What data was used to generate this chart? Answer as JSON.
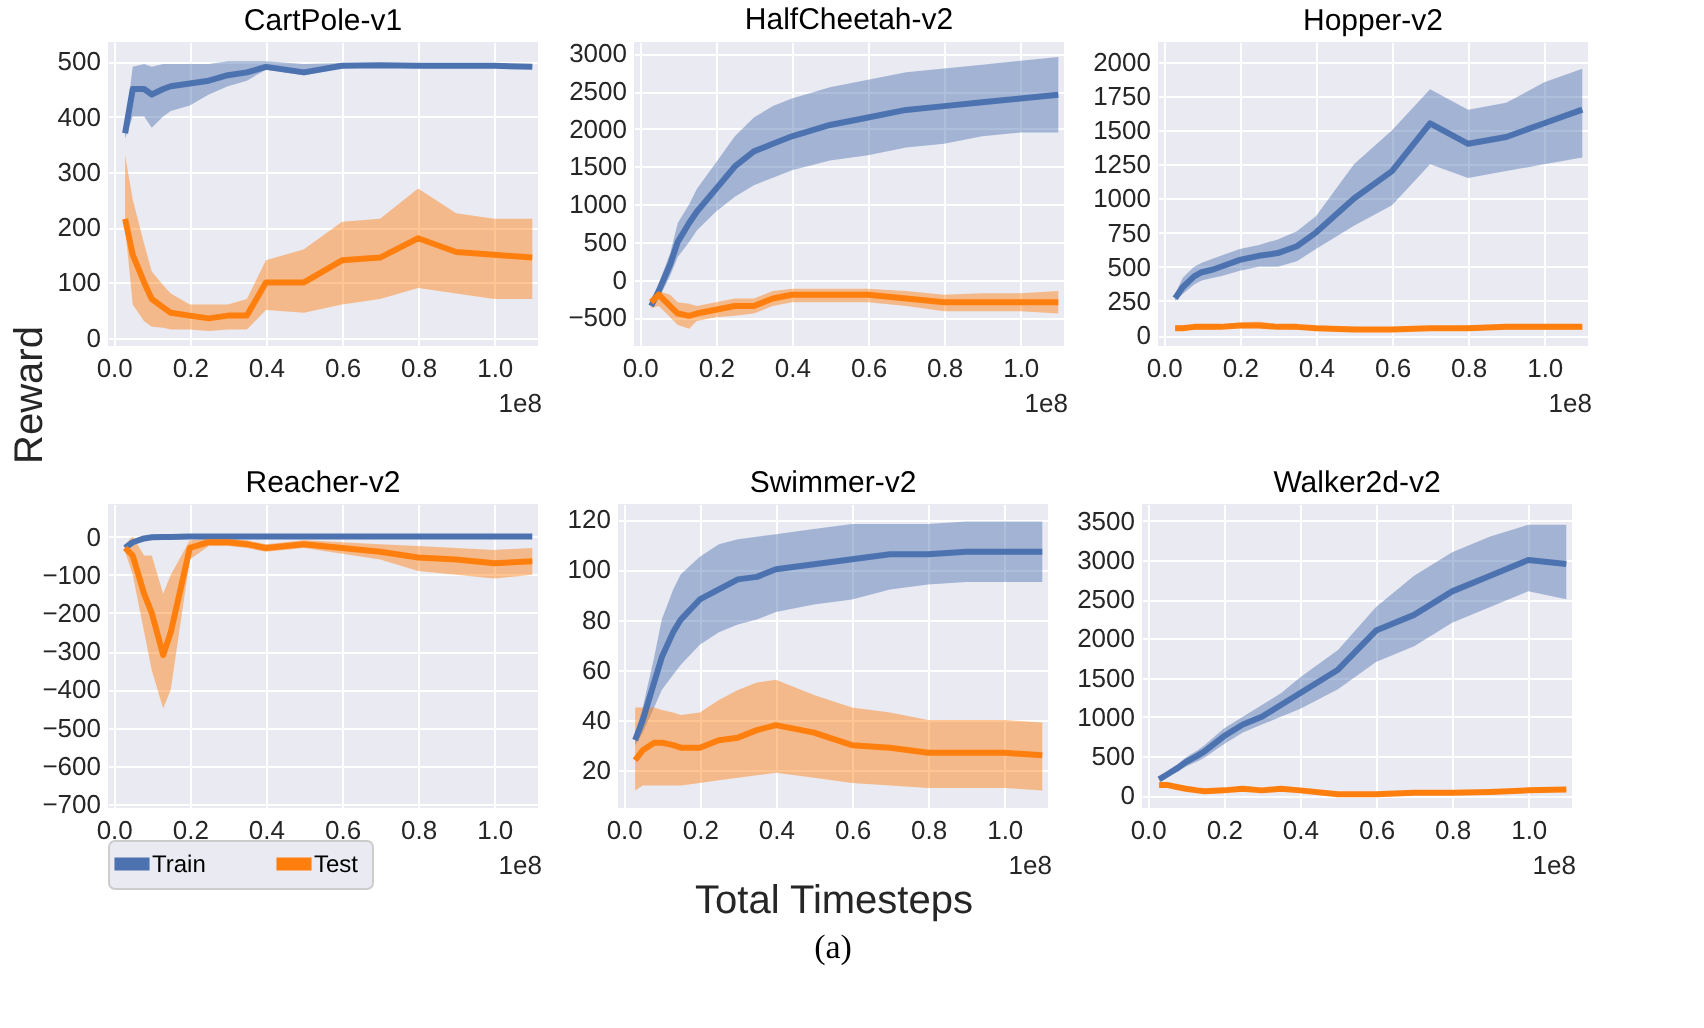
{
  "chart_data": [
    {
      "type": "line",
      "title": "CartPole-v1",
      "ylabel": "Reward",
      "annotations": [
        "1e8"
      ],
      "grid": true,
      "x": [
        0.03,
        0.05,
        0.08,
        0.1,
        0.13,
        0.15,
        0.2,
        0.25,
        0.3,
        0.35,
        0.4,
        0.5,
        0.6,
        0.7,
        0.8,
        0.9,
        1.0,
        1.1
      ],
      "xlim": [
        -0.015,
        1.115
      ],
      "xticks": [
        {
          "value": 0,
          "label": "0.0"
        },
        {
          "value": 0.2,
          "label": "0.2"
        },
        {
          "value": 0.4,
          "label": "0.4"
        },
        {
          "value": 0.6,
          "label": "0.6"
        },
        {
          "value": 0.8,
          "label": "0.8"
        },
        {
          "value": 1,
          "label": "1.0"
        }
      ],
      "ylim": [
        -15,
        535
      ],
      "yticks": [
        0,
        100,
        200,
        300,
        400,
        500
      ],
      "series": [
        {
          "color": "#4c72b0",
          "values": [
            370,
            450,
            450,
            440,
            450,
            455,
            460,
            465,
            475,
            480,
            490,
            480,
            492,
            493,
            492,
            492,
            492,
            490
          ],
          "lower": [
            360,
            400,
            400,
            380,
            400,
            410,
            420,
            440,
            455,
            465,
            485,
            475,
            488,
            490,
            488,
            488,
            488,
            487
          ],
          "upper": [
            380,
            490,
            495,
            490,
            495,
            495,
            495,
            495,
            500,
            500,
            500,
            495,
            497,
            497,
            497,
            496,
            496,
            495
          ]
        },
        {
          "color": "#ff7f0e",
          "values": [
            215,
            150,
            100,
            70,
            55,
            45,
            40,
            35,
            40,
            40,
            100,
            100,
            140,
            145,
            180,
            155,
            150,
            145
          ],
          "lower": [
            200,
            60,
            30,
            20,
            18,
            15,
            15,
            12,
            15,
            15,
            50,
            45,
            60,
            70,
            90,
            80,
            70,
            70
          ],
          "upper": [
            330,
            250,
            170,
            120,
            95,
            80,
            60,
            60,
            60,
            70,
            140,
            160,
            210,
            215,
            270,
            225,
            215,
            215
          ]
        }
      ]
    },
    {
      "type": "line",
      "title": "HalfCheetah-v2",
      "annotations": [
        "1e8"
      ],
      "grid": true,
      "x": [
        0.03,
        0.05,
        0.08,
        0.1,
        0.13,
        0.15,
        0.2,
        0.25,
        0.3,
        0.35,
        0.4,
        0.5,
        0.6,
        0.7,
        0.8,
        0.9,
        1.0,
        1.1
      ],
      "xlim": [
        -0.015,
        1.115
      ],
      "xticks": [
        {
          "value": 0,
          "label": "0.0"
        },
        {
          "value": 0.2,
          "label": "0.2"
        },
        {
          "value": 0.4,
          "label": "0.4"
        },
        {
          "value": 0.6,
          "label": "0.6"
        },
        {
          "value": 0.8,
          "label": "0.8"
        },
        {
          "value": 1,
          "label": "1.0"
        }
      ],
      "ylim": [
        -880,
        3150
      ],
      "yticks": [
        -500,
        0,
        500,
        1000,
        1500,
        2000,
        2500,
        3000
      ],
      "series": [
        {
          "color": "#4c72b0",
          "values": [
            -350,
            -150,
            200,
            500,
            750,
            900,
            1200,
            1500,
            1700,
            1800,
            1900,
            2050,
            2150,
            2250,
            2300,
            2350,
            2400,
            2450
          ],
          "lower": [
            -350,
            -250,
            50,
            300,
            500,
            650,
            900,
            1100,
            1250,
            1350,
            1450,
            1580,
            1650,
            1750,
            1800,
            1900,
            1950,
            1950
          ],
          "upper": [
            -350,
            -50,
            350,
            750,
            1000,
            1200,
            1550,
            1900,
            2150,
            2300,
            2400,
            2550,
            2650,
            2750,
            2800,
            2850,
            2900,
            2950
          ]
        },
        {
          "color": "#ff7f0e",
          "values": [
            -300,
            -200,
            -350,
            -450,
            -480,
            -450,
            -400,
            -350,
            -350,
            -250,
            -200,
            -200,
            -200,
            -250,
            -300,
            -300,
            -300,
            -300
          ],
          "lower": [
            -380,
            -350,
            -500,
            -600,
            -650,
            -550,
            -500,
            -480,
            -450,
            -350,
            -300,
            -300,
            -300,
            -350,
            -420,
            -420,
            -420,
            -450
          ],
          "upper": [
            -250,
            -150,
            -200,
            -300,
            -320,
            -350,
            -300,
            -250,
            -250,
            -150,
            -120,
            -120,
            -120,
            -150,
            -200,
            -180,
            -180,
            -150
          ]
        }
      ]
    },
    {
      "type": "line",
      "title": "Hopper-v2",
      "annotations": [
        "1e8"
      ],
      "grid": true,
      "x": [
        0.03,
        0.05,
        0.08,
        0.1,
        0.13,
        0.15,
        0.2,
        0.25,
        0.3,
        0.35,
        0.4,
        0.5,
        0.6,
        0.7,
        0.8,
        0.9,
        1.0,
        1.1
      ],
      "xlim": [
        -0.015,
        1.115
      ],
      "xticks": [
        {
          "value": 0,
          "label": "0.0"
        },
        {
          "value": 0.2,
          "label": "0.2"
        },
        {
          "value": 0.4,
          "label": "0.4"
        },
        {
          "value": 0.6,
          "label": "0.6"
        },
        {
          "value": 0.8,
          "label": "0.8"
        },
        {
          "value": 1,
          "label": "1.0"
        }
      ],
      "ylim": [
        -80,
        2145
      ],
      "yticks": [
        0,
        250,
        500,
        750,
        1000,
        1250,
        1500,
        1750,
        2000
      ],
      "series": [
        {
          "color": "#4c72b0",
          "values": [
            270,
            350,
            430,
            460,
            480,
            500,
            550,
            580,
            600,
            650,
            750,
            1000,
            1200,
            1550,
            1400,
            1450,
            1550,
            1650
          ],
          "lower": [
            250,
            300,
            370,
            400,
            420,
            430,
            470,
            500,
            500,
            540,
            630,
            800,
            950,
            1250,
            1150,
            1200,
            1250,
            1300
          ],
          "upper": [
            300,
            420,
            500,
            530,
            560,
            580,
            630,
            660,
            700,
            760,
            870,
            1250,
            1500,
            1800,
            1650,
            1700,
            1850,
            1950
          ]
        },
        {
          "color": "#ff7f0e",
          "values": [
            50,
            50,
            60,
            60,
            60,
            60,
            70,
            70,
            60,
            60,
            50,
            40,
            40,
            50,
            50,
            60,
            60,
            60
          ],
          "lower": [
            40,
            40,
            40,
            40,
            40,
            50,
            50,
            50,
            50,
            40,
            40,
            30,
            30,
            40,
            40,
            40,
            40,
            40
          ],
          "upper": [
            70,
            70,
            70,
            70,
            80,
            80,
            90,
            100,
            80,
            70,
            70,
            60,
            50,
            60,
            70,
            70,
            70,
            70
          ]
        }
      ]
    },
    {
      "type": "line",
      "title": "Reacher-v2",
      "annotations": [
        "1e8"
      ],
      "grid": true,
      "legend": "bottom left",
      "x": [
        0.03,
        0.05,
        0.08,
        0.1,
        0.13,
        0.15,
        0.2,
        0.25,
        0.3,
        0.35,
        0.4,
        0.5,
        0.6,
        0.7,
        0.8,
        0.9,
        1.0,
        1.1
      ],
      "xlim": [
        -0.015,
        1.115
      ],
      "xticks": [
        {
          "value": 0,
          "label": "0.0"
        },
        {
          "value": 0.2,
          "label": "0.2"
        },
        {
          "value": 0.4,
          "label": "0.4"
        },
        {
          "value": 0.6,
          "label": "0.6"
        },
        {
          "value": 0.8,
          "label": "0.8"
        },
        {
          "value": 1,
          "label": "1.0"
        }
      ],
      "ylim": [
        -710,
        85
      ],
      "yticks": [
        -700,
        -600,
        -500,
        -400,
        -300,
        -200,
        -100,
        0
      ],
      "series": [
        {
          "name": "Train",
          "color": "#4c72b0",
          "values": [
            -30,
            -15,
            -5,
            -2,
            -1,
            -1,
            0,
            0,
            0,
            0,
            0,
            0,
            0,
            0,
            0,
            0,
            0,
            0
          ],
          "lower": [
            -35,
            -20,
            -8,
            -5,
            -4,
            -4,
            -3,
            -3,
            -3,
            -3,
            -3,
            -3,
            -3,
            -3,
            -3,
            -3,
            -3,
            -3
          ],
          "upper": [
            -25,
            -10,
            -2,
            0,
            0,
            0,
            0,
            0,
            0,
            0,
            0,
            0,
            0,
            0,
            0,
            0,
            0,
            0
          ]
        },
        {
          "name": "Test",
          "color": "#ff7f0e",
          "values": [
            -30,
            -50,
            -150,
            -200,
            -310,
            -250,
            -30,
            -15,
            -15,
            -20,
            -30,
            -20,
            -30,
            -40,
            -55,
            -60,
            -70,
            -65
          ],
          "lower": [
            -40,
            -100,
            -250,
            -350,
            -450,
            -400,
            -60,
            -25,
            -25,
            -30,
            -40,
            -30,
            -45,
            -60,
            -90,
            -100,
            -110,
            -100
          ],
          "upper": [
            -20,
            0,
            -50,
            -50,
            -150,
            -100,
            -10,
            -5,
            -5,
            -10,
            -20,
            -10,
            -15,
            -20,
            -25,
            -30,
            -35,
            -30
          ]
        }
      ]
    },
    {
      "type": "line",
      "title": "Swimmer-v2",
      "xlabel": "Total Timesteps",
      "annotations": [
        "1e8",
        "(a)"
      ],
      "grid": true,
      "x": [
        0.03,
        0.05,
        0.08,
        0.1,
        0.13,
        0.15,
        0.2,
        0.25,
        0.3,
        0.35,
        0.4,
        0.5,
        0.6,
        0.7,
        0.8,
        0.9,
        1.0,
        1.1
      ],
      "xlim": [
        -0.015,
        1.115
      ],
      "xticks": [
        {
          "value": 0,
          "label": "0.0"
        },
        {
          "value": 0.2,
          "label": "0.2"
        },
        {
          "value": 0.4,
          "label": "0.4"
        },
        {
          "value": 0.6,
          "label": "0.6"
        },
        {
          "value": 0.8,
          "label": "0.8"
        },
        {
          "value": 1,
          "label": "1.0"
        }
      ],
      "ylim": [
        5,
        126
      ],
      "yticks": [
        20,
        40,
        60,
        80,
        100,
        120
      ],
      "series": [
        {
          "color": "#4c72b0",
          "values": [
            32,
            40,
            55,
            65,
            75,
            80,
            88,
            92,
            96,
            97,
            100,
            102,
            104,
            106,
            106,
            107,
            107,
            107
          ],
          "lower": [
            30,
            35,
            45,
            52,
            58,
            62,
            70,
            75,
            78,
            80,
            83,
            86,
            88,
            92,
            94,
            95,
            95,
            95
          ],
          "upper": [
            35,
            45,
            65,
            80,
            92,
            98,
            105,
            110,
            112,
            113,
            114,
            116,
            118,
            118,
            118,
            119,
            119,
            119
          ]
        },
        {
          "color": "#ff7f0e",
          "values": [
            24,
            28,
            31,
            31,
            30,
            29,
            29,
            32,
            33,
            36,
            38,
            35,
            30,
            29,
            27,
            27,
            27,
            26
          ],
          "lower": [
            12,
            14,
            14,
            14,
            14,
            14,
            15,
            16,
            17,
            18,
            19,
            17,
            15,
            14,
            13,
            13,
            13,
            12
          ],
          "upper": [
            45,
            45,
            45,
            44,
            43,
            42,
            43,
            48,
            52,
            55,
            56,
            50,
            45,
            43,
            40,
            40,
            40,
            39
          ]
        }
      ]
    },
    {
      "type": "line",
      "title": "Walker2d-v2",
      "annotations": [
        "1e8"
      ],
      "grid": true,
      "x": [
        0.03,
        0.05,
        0.08,
        0.1,
        0.13,
        0.15,
        0.2,
        0.25,
        0.3,
        0.35,
        0.4,
        0.5,
        0.6,
        0.7,
        0.8,
        0.9,
        1.0,
        1.1
      ],
      "xlim": [
        -0.015,
        1.115
      ],
      "xticks": [
        {
          "value": 0,
          "label": "0.0"
        },
        {
          "value": 0.2,
          "label": "0.2"
        },
        {
          "value": 0.4,
          "label": "0.4"
        },
        {
          "value": 0.6,
          "label": "0.6"
        },
        {
          "value": 0.8,
          "label": "0.8"
        },
        {
          "value": 1,
          "label": "1.0"
        }
      ],
      "ylim": [
        -165,
        3715
      ],
      "yticks": [
        0,
        500,
        1000,
        1500,
        2000,
        2500,
        3000,
        3500
      ],
      "series": [
        {
          "color": "#4c72b0",
          "values": [
            200,
            260,
            350,
            420,
            500,
            560,
            750,
            900,
            1000,
            1150,
            1300,
            1600,
            2100,
            2300,
            2600,
            2800,
            3000,
            2950
          ],
          "lower": [
            180,
            230,
            300,
            360,
            430,
            480,
            650,
            800,
            900,
            1000,
            1100,
            1350,
            1700,
            1900,
            2200,
            2400,
            2600,
            2500
          ],
          "upper": [
            220,
            290,
            400,
            480,
            570,
            640,
            850,
            1000,
            1150,
            1300,
            1500,
            1850,
            2400,
            2800,
            3100,
            3300,
            3450,
            3450
          ]
        },
        {
          "color": "#ff7f0e",
          "values": [
            130,
            130,
            100,
            80,
            60,
            50,
            60,
            80,
            60,
            80,
            60,
            10,
            10,
            30,
            30,
            40,
            60,
            70
          ],
          "lower": [
            100,
            100,
            70,
            50,
            40,
            30,
            40,
            60,
            40,
            60,
            40,
            0,
            0,
            15,
            15,
            20,
            40,
            50
          ],
          "upper": [
            160,
            160,
            130,
            110,
            80,
            70,
            80,
            100,
            80,
            110,
            80,
            25,
            25,
            45,
            45,
            60,
            80,
            90
          ]
        }
      ]
    }
  ]
}
